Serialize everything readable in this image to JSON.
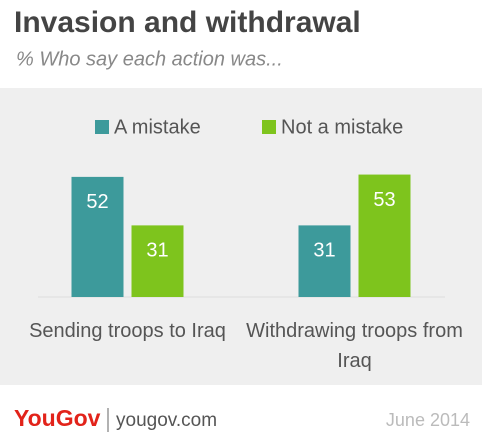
{
  "chart_data": {
    "type": "bar",
    "title": "Invasion and withdrawal",
    "subtitle": "% Who say each action was...",
    "categories": [
      "Sending troops to Iraq",
      "Withdrawing troops from Iraq"
    ],
    "series": [
      {
        "name": "A mistake",
        "color": "#3d9a9b",
        "values": [
          52,
          31
        ]
      },
      {
        "name": "Not a mistake",
        "color": "#7ec41d",
        "values": [
          31,
          53
        ]
      }
    ],
    "ylim": [
      0,
      60
    ],
    "logo": "YouGov",
    "source": "yougov.com",
    "date": "June 2014"
  }
}
